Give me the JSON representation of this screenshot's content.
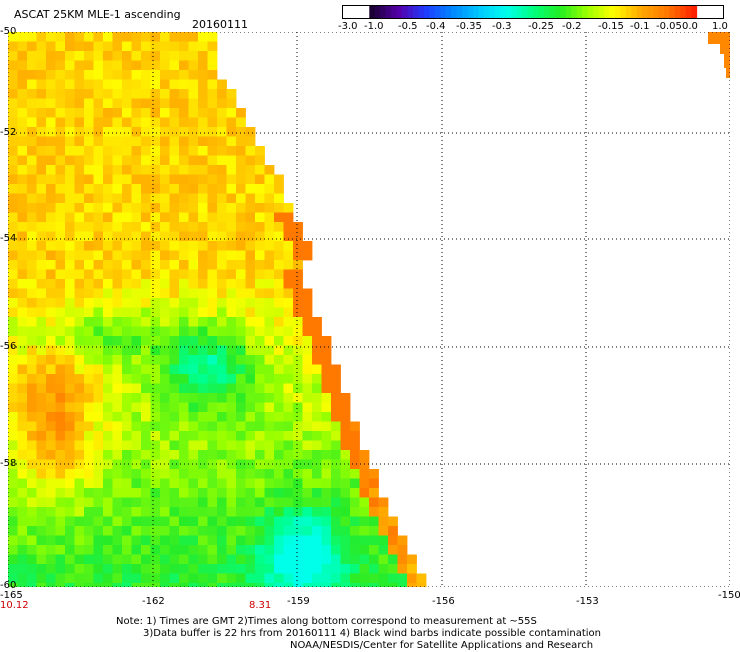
{
  "header": {
    "title": "ASCAT 25KM MLE-1 ascending",
    "date": "20160111"
  },
  "colorbar": {
    "labels": [
      "-3.0",
      "-1.0",
      "-0.5",
      "-0.4",
      "-0.35",
      "-0.3",
      "-0.25",
      "-0.2",
      "-0.15",
      "-0.1",
      "-0.05",
      "0.0",
      "1.0"
    ],
    "colors": [
      "#1a0033",
      "#5500aa",
      "#1f3cff",
      "#0088ff",
      "#00c8ff",
      "#00ffee",
      "#00ff80",
      "#22ee22",
      "#99ff00",
      "#ffff00",
      "#ffaa00",
      "#ff7700",
      "#ff2200"
    ]
  },
  "axes": {
    "lat_labels": [
      "-50",
      "-52",
      "-54",
      "-56",
      "-58",
      "-60"
    ],
    "lon_labels": [
      "-165",
      "-162",
      "-159",
      "-156",
      "-153",
      "-150"
    ],
    "time_labels": [
      "10.12",
      "8.31"
    ]
  },
  "notes": {
    "line1": "Note: 1) Times are GMT 2)Times along bottom correspond to measurement at ~55S",
    "line2": "3)Data buffer is 22 hrs from 20160111 4) Black wind barbs indicate possible contamination",
    "line3": "NOAA/NESDIS/Center for Satellite Applications and Research"
  }
}
